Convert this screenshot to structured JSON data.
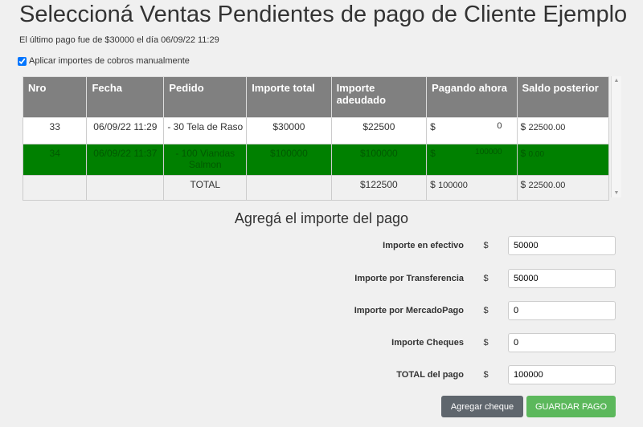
{
  "title": "Seleccioná Ventas Pendientes de pago de Cliente Ejemplo",
  "last_payment": "El último pago fue de $30000 el día 06/09/22 11:29",
  "manual_checkbox": {
    "label": "Aplicar importes de cobros manualmente",
    "checked": true
  },
  "table": {
    "headers": [
      "Nro",
      "Fecha",
      "Pedido",
      "Importe total",
      "Importe adeudado",
      "Pagando ahora",
      "Saldo posterior"
    ],
    "rows": [
      {
        "nro": "33",
        "fecha": "06/09/22 11:29",
        "pedido": "- 30 Tela de Raso",
        "total": "$30000",
        "adeudado": "$22500",
        "pagando": "0",
        "saldo": "22500.00"
      },
      {
        "nro": "34",
        "fecha": "06/09/22 11:37",
        "pedido": "- 100 Viandas Salmon",
        "total": "$100000",
        "adeudado": "$100000",
        "pagando": "100000",
        "saldo": "0.00",
        "highlight": "#008000"
      }
    ],
    "total_row": {
      "label": "TOTAL",
      "adeudado": "$122500",
      "pagando": "100000",
      "saldo": "22500.00"
    },
    "currency": "$"
  },
  "form": {
    "heading": "Agregá el importe del pago",
    "fields": [
      {
        "label": "Importe en efectivo",
        "value": "50000"
      },
      {
        "label": "Importe por Transferencia",
        "value": "50000"
      },
      {
        "label": "Importe por MercadoPago",
        "value": "0"
      },
      {
        "label": "Importe Cheques",
        "value": "0"
      },
      {
        "label": "TOTAL del pago",
        "value": "100000"
      }
    ],
    "add_cheque": "Agregar cheque",
    "save": "GUARDAR PAGO"
  }
}
